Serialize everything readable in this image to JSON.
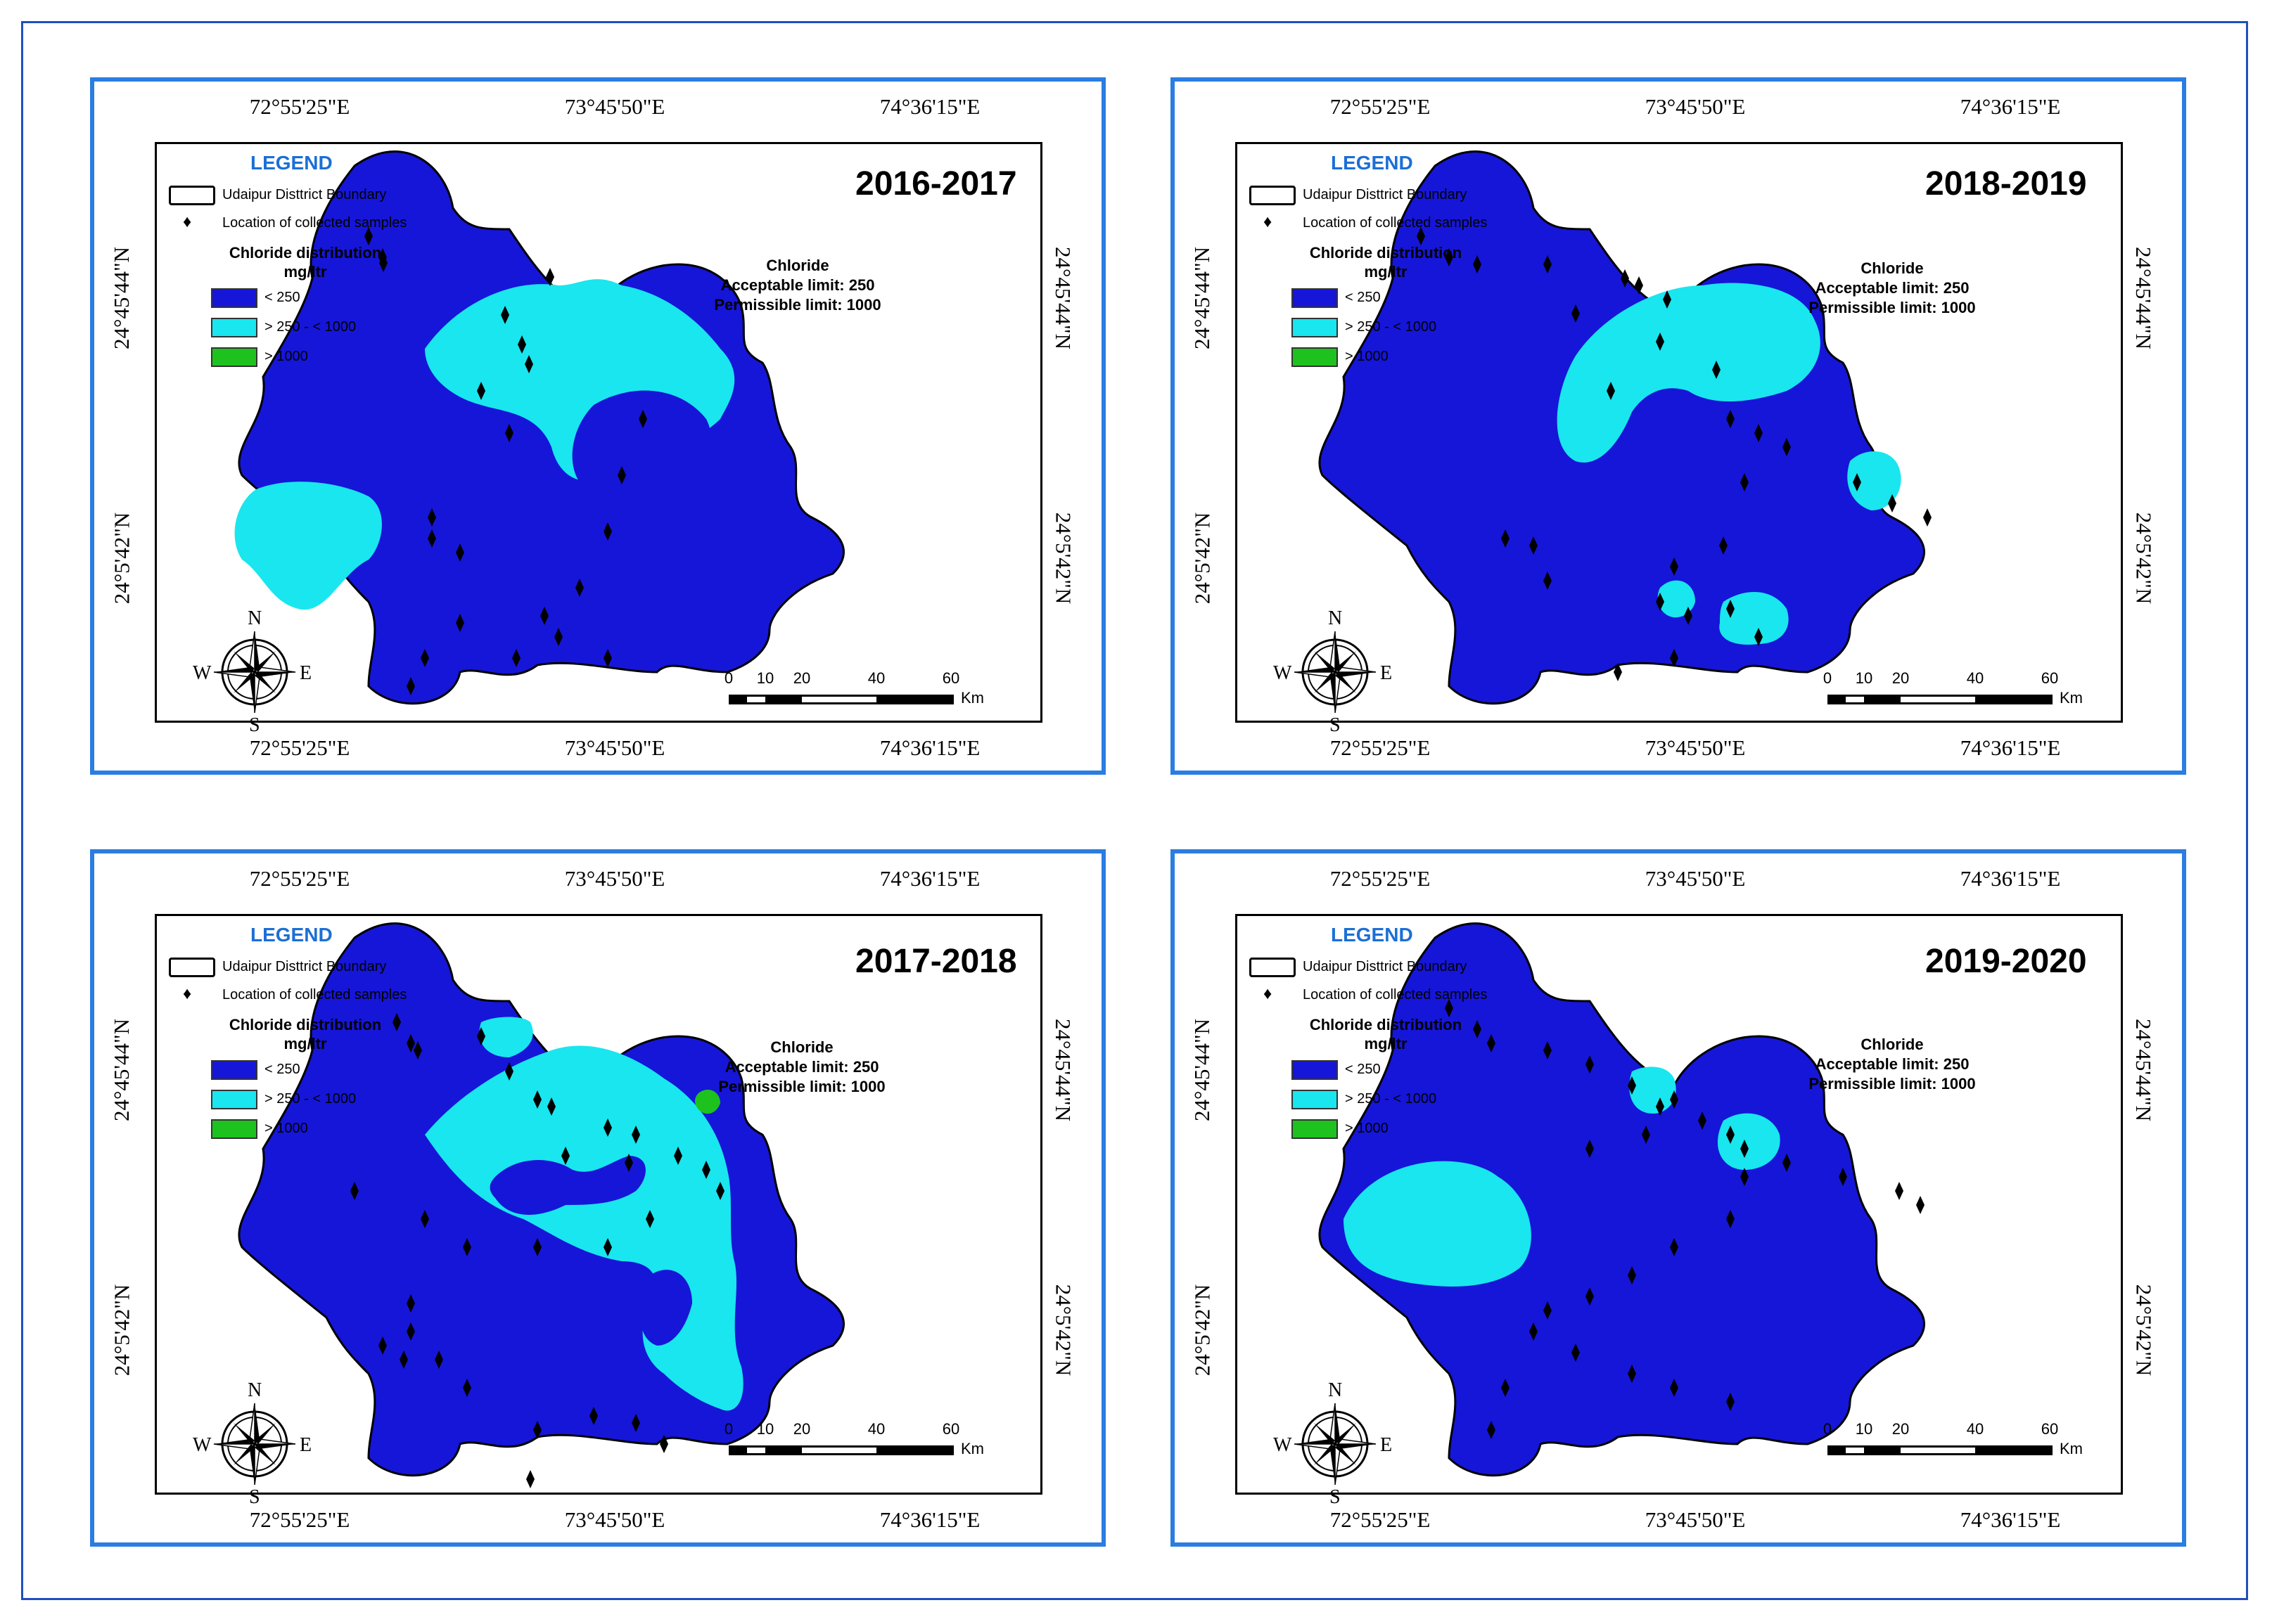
{
  "lon_labels": [
    "72°55'25\"E",
    "73°45'50\"E",
    "74°36'15\"E"
  ],
  "lat_labels": [
    "24°45'44\"N",
    "24°5'42\"N"
  ],
  "legend": {
    "title": "LEGEND",
    "boundary": "Udaipur Disttrict Boundary",
    "samples": "Location of collected samples",
    "dist_title": "Chloride distribution",
    "dist_unit": "mg/ltr",
    "classes": [
      {
        "label": "< 250",
        "color": "#1616d8"
      },
      {
        "label": "> 250 - < 1000",
        "color": "#19e6ee"
      },
      {
        "label": "> 1000",
        "color": "#1ec21e"
      }
    ]
  },
  "info": {
    "name": "Chloride",
    "acceptable": "Acceptable limit: 250",
    "permissible": "Permissible limit: 1000"
  },
  "scale": {
    "ticks": [
      "0",
      "10",
      "20",
      "40",
      "60"
    ],
    "unit": "Km"
  },
  "compass": {
    "n": "N",
    "s": "S",
    "e": "E",
    "w": "W"
  },
  "colors": {
    "low": "#1616d8",
    "mid": "#19e6ee",
    "high": "#1ec21e",
    "panel_border": "#2a7de1"
  },
  "panels": [
    {
      "year": "2016-2017"
    },
    {
      "year": "2018-2019"
    },
    {
      "year": "2017-2018"
    },
    {
      "year": "2019-2020"
    }
  ]
}
